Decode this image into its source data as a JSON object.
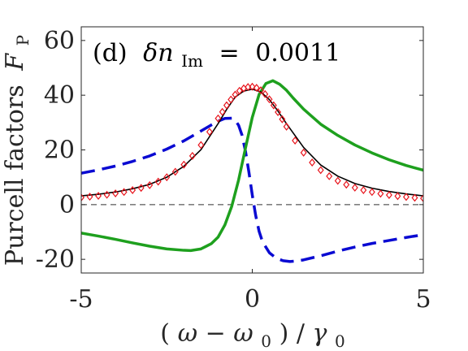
{
  "chart_data": {
    "type": "line",
    "panel_label": "(d)",
    "annotation": {
      "symbol": "δn",
      "subscript": "Im",
      "equals": "=",
      "value": "0.0011"
    },
    "ylabel": "Purcell factors",
    "ylabel_symbol": "F",
    "ylabel_subscript": "P",
    "xlabel": {
      "open": "(",
      "omega": "ω",
      "minus": " − ",
      "omega0": "ω",
      "sub0": "0",
      "close": ")",
      "slash": "/",
      "gamma": "γ",
      "subgamma": "0"
    },
    "xlim": [
      -5,
      5
    ],
    "ylim": [
      -25,
      65
    ],
    "xticks": [
      -5,
      0,
      5
    ],
    "xtick_labels": [
      "-5",
      "0",
      "5"
    ],
    "yticks": [
      -20,
      0,
      20,
      40,
      60
    ],
    "ytick_labels": [
      "-20",
      "0",
      "20",
      "40",
      "60"
    ],
    "grid": false,
    "zero_line": true,
    "series": [
      {
        "style": "black solid line",
        "color": "#000000",
        "x": [
          -5,
          -4.5,
          -4,
          -3.5,
          -3,
          -2.5,
          -2,
          -1.5,
          -1,
          -0.75,
          -0.5,
          -0.25,
          0,
          0.25,
          0.5,
          0.75,
          1,
          1.5,
          2,
          2.5,
          3,
          3.5,
          4,
          4.5,
          5
        ],
        "values": [
          3.2,
          3.8,
          4.6,
          5.8,
          7.4,
          10.0,
          14.0,
          20.1,
          29.6,
          34.8,
          39.3,
          41.5,
          42.2,
          41.2,
          38.4,
          34.2,
          29.6,
          20.9,
          14.5,
          10.4,
          7.7,
          6.0,
          4.8,
          3.9,
          3.2
        ]
      },
      {
        "style": "red diamond markers",
        "color": "#e8141c",
        "x": [
          -5,
          -4.75,
          -4.5,
          -4.25,
          -4,
          -3.75,
          -3.5,
          -3.25,
          -3,
          -2.75,
          -2.5,
          -2.25,
          -2,
          -1.75,
          -1.5,
          -1.25,
          -1,
          -0.875,
          -0.75,
          -0.625,
          -0.5,
          -0.375,
          -0.25,
          -0.125,
          0,
          0.125,
          0.25,
          0.375,
          0.5,
          0.625,
          0.75,
          0.875,
          1,
          1.25,
          1.5,
          1.75,
          2,
          2.25,
          2.5,
          2.75,
          3,
          3.25,
          3.5,
          3.75,
          4,
          4.25,
          4.5,
          4.75,
          5
        ],
        "values": [
          2.6,
          2.9,
          3.2,
          3.6,
          4.1,
          4.6,
          5.3,
          6.1,
          7.1,
          8.4,
          10.0,
          12.0,
          14.6,
          17.8,
          21.8,
          26.6,
          31.5,
          33.9,
          36.3,
          38.4,
          40.2,
          41.6,
          42.5,
          43.0,
          43.1,
          42.7,
          41.8,
          40.4,
          38.5,
          36.3,
          33.8,
          31.2,
          28.5,
          23.4,
          19.0,
          15.4,
          12.6,
          10.4,
          8.7,
          7.3,
          6.2,
          5.3,
          4.6,
          4.0,
          3.5,
          3.1,
          2.8,
          2.5,
          2.3
        ]
      },
      {
        "style": "blue dashed line",
        "color": "#0a0ad2",
        "x": [
          -5,
          -4.5,
          -4,
          -3.5,
          -3,
          -2.5,
          -2,
          -1.5,
          -1.2,
          -1,
          -0.8,
          -0.6,
          -0.5,
          -0.4,
          -0.3,
          -0.2,
          -0.1,
          0,
          0.1,
          0.2,
          0.3,
          0.5,
          0.7,
          0.9,
          1.1,
          1.3,
          1.5,
          2,
          2.5,
          3,
          3.5,
          4,
          4.5,
          5
        ],
        "values": [
          11.5,
          12.7,
          14.1,
          15.8,
          17.8,
          20.3,
          23.3,
          26.9,
          29.1,
          30.5,
          31.5,
          31.6,
          30.9,
          29.0,
          25.4,
          19.6,
          12.0,
          3.5,
          -4.0,
          -9.8,
          -13.6,
          -17.6,
          -19.6,
          -20.5,
          -20.8,
          -20.6,
          -20.2,
          -18.7,
          -17.0,
          -15.5,
          -14.2,
          -13.1,
          -12.0,
          -11.0
        ]
      },
      {
        "style": "green solid line",
        "color": "#1ea01e",
        "x": [
          -5,
          -4.5,
          -4,
          -3.5,
          -3,
          -2.5,
          -2,
          -1.8,
          -1.5,
          -1.2,
          -1,
          -0.8,
          -0.6,
          -0.4,
          -0.2,
          0,
          0.2,
          0.4,
          0.6,
          0.8,
          1,
          1.2,
          1.5,
          2,
          2.5,
          3,
          3.5,
          4,
          4.5,
          5
        ],
        "values": [
          -10.4,
          -11.5,
          -12.7,
          -14.0,
          -15.2,
          -16.2,
          -16.7,
          -16.8,
          -16.2,
          -14.3,
          -11.9,
          -7.4,
          -0.6,
          9.0,
          20.6,
          31.9,
          40.3,
          44.3,
          45.3,
          44.0,
          41.8,
          38.9,
          34.9,
          29.4,
          25.3,
          21.8,
          18.9,
          16.4,
          14.3,
          12.6
        ]
      }
    ]
  }
}
